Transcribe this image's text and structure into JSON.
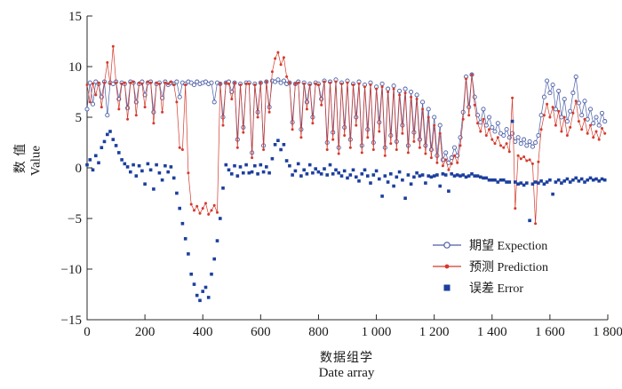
{
  "chart_data": {
    "type": "line",
    "title": "",
    "xlabel_zh": "数据组学",
    "xlabel_en": "Date array",
    "ylabel_zh": "数 值",
    "ylabel_en": "Value",
    "xlim": [
      0,
      1800
    ],
    "ylim": [
      -15,
      15
    ],
    "grid": false,
    "axis_color": "#2a2a2a",
    "x_ticks": [
      0,
      200,
      400,
      600,
      800,
      1000,
      1200,
      1400,
      1600,
      1800
    ],
    "x_tick_labels": [
      "0",
      "200",
      "400",
      "600",
      "800",
      "1 000",
      "1 200",
      "1 400",
      "1 600",
      "1 800"
    ],
    "y_ticks": [
      -15,
      -10,
      -5,
      0,
      5,
      10,
      15
    ],
    "y_tick_labels": [
      "−15",
      "−10",
      "−5",
      "0",
      "5",
      "10",
      "15"
    ],
    "legend": {
      "position": "inside lower right",
      "items": [
        {
          "label": "期望 Expection",
          "color": "#4a5ea6",
          "marker": "open-circle",
          "line": true
        },
        {
          "label": "预测 Prediction",
          "color": "#d43a2c",
          "marker": "filled-circle",
          "line": true
        },
        {
          "label": "误差 Error",
          "color": "#1c3f9e",
          "marker": "filled-square",
          "line": false
        }
      ]
    },
    "x_start": 0,
    "x_step": 10,
    "series": [
      {
        "name": "期望 Expection",
        "values": [
          5.8,
          8.4,
          6.3,
          8.5,
          8.3,
          7.0,
          8.5,
          5.2,
          8.4,
          8.3,
          8.5,
          6.8,
          8.4,
          8.3,
          5.9,
          8.5,
          8.4,
          6.5,
          8.3,
          8.5,
          7.2,
          8.4,
          8.5,
          5.5,
          8.3,
          8.4,
          6.9,
          8.5,
          8.2,
          8.4,
          8.3,
          8.5,
          7.0,
          8.4,
          8.3,
          8.5,
          8.4,
          8.2,
          8.5,
          8.3,
          8.4,
          8.5,
          8.3,
          8.4,
          6.5,
          8.4,
          8.3,
          5.0,
          8.4,
          8.5,
          7.5,
          8.4,
          2.8,
          8.3,
          4.0,
          8.4,
          8.4,
          1.5,
          8.3,
          5.5,
          8.4,
          2.2,
          8.5,
          6.0,
          8.6,
          8.5,
          8.7,
          8.4,
          8.6,
          8.3,
          8.4,
          4.5,
          8.3,
          8.5,
          3.8,
          8.4,
          6.5,
          8.3,
          5.0,
          8.4,
          8.3,
          6.8,
          8.6,
          2.5,
          8.5,
          3.5,
          8.7,
          2.0,
          8.4,
          4.0,
          8.6,
          2.8,
          8.3,
          5.0,
          8.5,
          2.2,
          8.2,
          3.8,
          8.4,
          2.5,
          8.0,
          4.5,
          8.3,
          2.0,
          7.8,
          3.2,
          8.1,
          2.6,
          7.6,
          4.2,
          7.8,
          2.2,
          7.5,
          3.5,
          7.2,
          2.8,
          6.5,
          2.2,
          5.8,
          1.8,
          5.0,
          1.2,
          4.2,
          0.8,
          1.5,
          0.5,
          1.0,
          2.0,
          1.2,
          3.0,
          5.5,
          9.0,
          6.0,
          9.2,
          7.0,
          5.2,
          4.5,
          5.8,
          4.2,
          5.0,
          4.0,
          3.6,
          4.4,
          3.4,
          3.2,
          3.8,
          3.0,
          3.4,
          2.6,
          3.0,
          2.4,
          2.8,
          2.2,
          2.6,
          2.1,
          2.5,
          3.2,
          5.2,
          7.0,
          8.6,
          7.4,
          8.2,
          5.8,
          7.6,
          5.0,
          6.8,
          4.6,
          5.6,
          7.4,
          9.0,
          6.4,
          5.2,
          6.6,
          4.8,
          5.8,
          4.4,
          5.0,
          4.2,
          5.4,
          4.6
        ]
      },
      {
        "name": "预测 Prediction",
        "values": [
          8.2,
          6.5,
          8.3,
          7.2,
          8.4,
          6.0,
          8.4,
          10.4,
          8.3,
          12.0,
          8.4,
          5.8,
          8.3,
          8.4,
          4.8,
          8.4,
          8.5,
          5.2,
          8.4,
          8.3,
          6.0,
          8.5,
          8.4,
          4.4,
          8.4,
          8.3,
          5.5,
          8.4,
          8.3,
          8.5,
          8.2,
          6.5,
          2.0,
          1.8,
          8.2,
          -0.5,
          -3.6,
          -4.2,
          -3.8,
          -4.5,
          -4.0,
          -3.5,
          -4.6,
          -4.2,
          -3.7,
          -4.4,
          8.3,
          4.2,
          8.4,
          8.3,
          6.8,
          8.4,
          2.0,
          8.2,
          3.5,
          8.3,
          8.3,
          1.0,
          8.2,
          5.0,
          8.4,
          1.8,
          8.5,
          5.5,
          9.5,
          10.8,
          11.4,
          10.2,
          10.9,
          9.0,
          8.4,
          3.8,
          8.3,
          8.4,
          3.0,
          8.3,
          5.8,
          8.2,
          4.4,
          8.3,
          8.2,
          6.2,
          8.5,
          1.8,
          8.4,
          2.8,
          8.5,
          1.4,
          8.3,
          3.2,
          8.4,
          2.0,
          8.2,
          4.2,
          8.3,
          1.5,
          8.0,
          3.0,
          8.2,
          1.8,
          7.8,
          3.6,
          8.0,
          1.2,
          7.5,
          2.4,
          7.8,
          1.8,
          7.2,
          3.4,
          7.4,
          1.5,
          7.0,
          2.6,
          6.8,
          2.0,
          5.8,
          1.4,
          5.0,
          1.0,
          4.2,
          0.5,
          3.4,
          0.2,
          0.8,
          -0.2,
          0.4,
          1.2,
          0.5,
          2.2,
          4.8,
          8.8,
          5.2,
          9.2,
          6.2,
          4.4,
          3.6,
          4.8,
          3.2,
          3.8,
          2.8,
          2.4,
          3.0,
          2.2,
          2.0,
          2.4,
          1.6,
          6.9,
          -4.0,
          1.2,
          0.9,
          1.1,
          0.7,
          0.8,
          0.4,
          -5.5,
          0.6,
          3.8,
          5.2,
          6.3,
          5.0,
          6.0,
          4.2,
          5.6,
          3.6,
          5.0,
          3.2,
          4.0,
          5.4,
          6.6,
          4.6,
          3.8,
          4.8,
          3.4,
          4.2,
          3.0,
          3.6,
          2.8,
          3.9,
          3.4
        ]
      },
      {
        "name": "误差 Error",
        "values": [
          0.3,
          0.8,
          -0.2,
          1.2,
          0.5,
          2.0,
          2.6,
          3.3,
          3.6,
          2.8,
          2.2,
          1.5,
          0.8,
          0.4,
          0.1,
          -0.4,
          0.3,
          -0.8,
          0.2,
          -0.3,
          -1.6,
          0.4,
          -0.2,
          -2.1,
          0.3,
          -0.5,
          -1.2,
          0.2,
          -0.4,
          0.1,
          -1.0,
          -2.5,
          -4.0,
          -5.5,
          -7.0,
          -8.5,
          -10.5,
          -11.5,
          -12.6,
          -13.1,
          -12.2,
          -11.8,
          -12.8,
          -10.5,
          -9.0,
          -7.2,
          -5.0,
          -2.0,
          0.3,
          -0.2,
          -0.6,
          0.2,
          -0.8,
          0.1,
          -0.5,
          0.3,
          -0.5,
          -0.4,
          0.2,
          -0.6,
          0.3,
          -0.4,
          0.1,
          -0.5,
          0.9,
          2.3,
          2.7,
          1.8,
          2.3,
          0.7,
          0.2,
          -0.7,
          -0.3,
          0.4,
          -0.8,
          -0.2,
          -0.6,
          0.3,
          -0.5,
          -0.1,
          -0.4,
          -0.6,
          -0.1,
          -0.7,
          0.3,
          -0.6,
          -0.2,
          -0.5,
          -0.8,
          -0.3,
          -1.0,
          -0.7,
          -0.2,
          -0.9,
          -1.3,
          -0.6,
          -0.2,
          -0.8,
          -1.5,
          -0.7,
          -0.3,
          -1.1,
          -2.8,
          -0.8,
          -1.4,
          -0.6,
          -1.8,
          -0.9,
          -0.4,
          -1.2,
          -3.0,
          -0.7,
          -1.6,
          -0.9,
          -0.5,
          -0.8,
          -0.7,
          -1.5,
          -0.8,
          -0.9,
          -0.8,
          -0.7,
          -1.8,
          -0.6,
          -0.7,
          -2.3,
          -0.6,
          -0.8,
          -0.7,
          -0.8,
          -0.7,
          -0.9,
          -0.8,
          -0.6,
          -0.8,
          -0.8,
          -0.9,
          -1.0,
          -1.0,
          -1.2,
          -1.2,
          -1.2,
          -1.4,
          -1.2,
          -1.2,
          -1.4,
          -1.4,
          4.6,
          -1.4,
          -1.6,
          -1.5,
          -1.7,
          -1.5,
          -5.2,
          -1.6,
          -1.4,
          -1.5,
          -1.3,
          -1.6,
          -1.4,
          -1.2,
          -2.6,
          -1.4,
          -1.2,
          -1.5,
          -1.3,
          -1.1,
          -1.4,
          -1.2,
          -1.0,
          -1.3,
          -1.1,
          -1.4,
          -1.2,
          -1.0,
          -1.2,
          -1.1,
          -1.3,
          -1.1,
          -1.2
        ]
      }
    ]
  }
}
